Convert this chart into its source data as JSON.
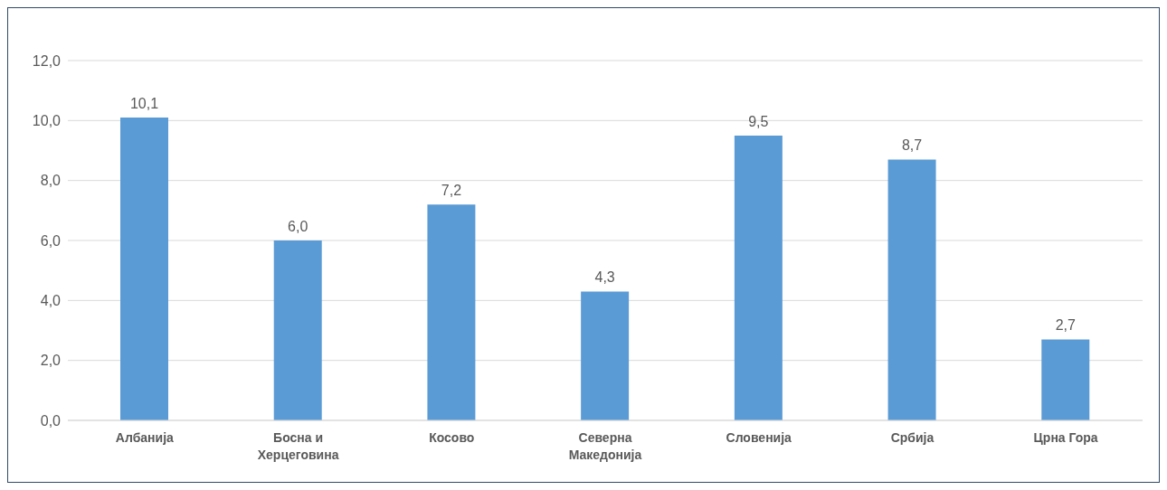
{
  "chart_data": {
    "type": "bar",
    "categories": [
      "Албанија",
      "Босна и Херцеговина",
      "Косово",
      "Северна Македонија",
      "Словенија",
      "Србија",
      "Црна Гора"
    ],
    "values": [
      10.1,
      6.0,
      7.2,
      4.3,
      9.5,
      8.7,
      2.7
    ],
    "value_labels": [
      "10,1",
      "6,0",
      "7,2",
      "4,3",
      "9,5",
      "8,7",
      "2,7"
    ],
    "color": "#5b9bd5",
    "ylim": [
      0,
      12
    ],
    "yticks": [
      {
        "value": 0,
        "label": "0,0"
      },
      {
        "value": 2,
        "label": "2,0"
      },
      {
        "value": 4,
        "label": "4,0"
      },
      {
        "value": 6,
        "label": "6,0"
      },
      {
        "value": 8,
        "label": "8,0"
      },
      {
        "value": 10,
        "label": "10,0"
      },
      {
        "value": 12,
        "label": "12,0"
      }
    ],
    "grid": "y",
    "legend": false
  }
}
